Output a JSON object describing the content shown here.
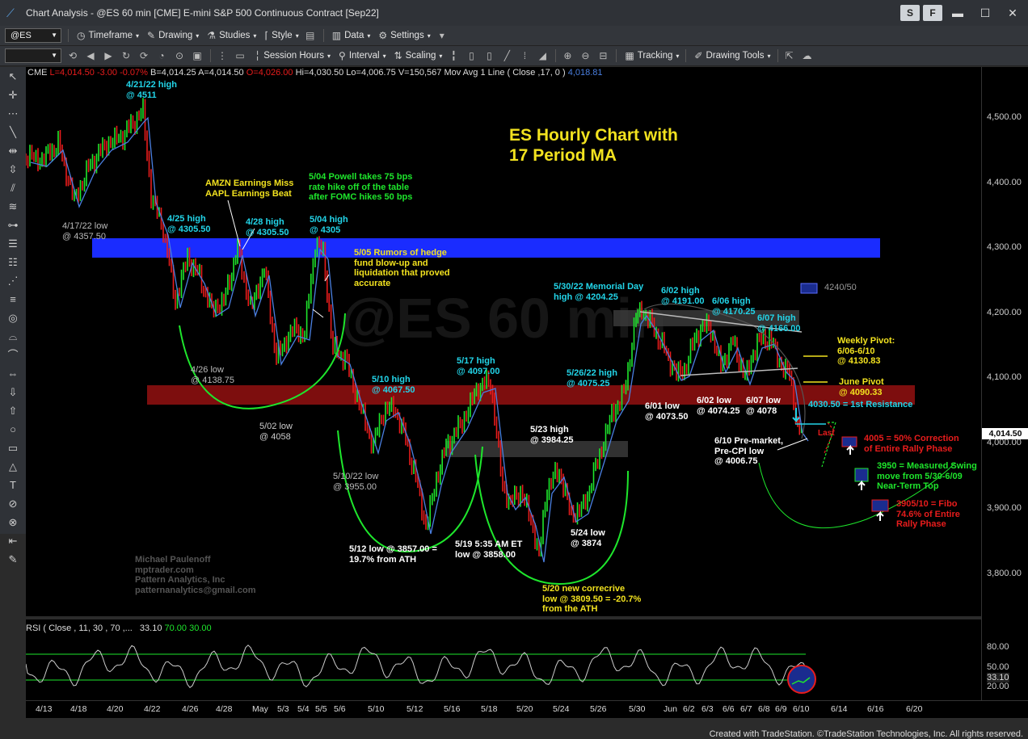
{
  "window": {
    "title": "Chart Analysis - @ES 60 min [CME] E-mini S&P 500 Continuous Contract [Sep22]",
    "buttons": [
      "S",
      "F"
    ]
  },
  "toolbar1": {
    "symbol": "@ES",
    "items": [
      "Timeframe",
      "Drawing",
      "Studies",
      "Style",
      "Data",
      "Settings"
    ]
  },
  "toolbar2": {
    "items": [
      "Session Hours",
      "Interval",
      "Scaling",
      "Tracking",
      "Drawing Tools"
    ]
  },
  "info_line": {
    "exchange": "CME",
    "last": "L=4,014.50",
    "change": "-3.00",
    "pct": "-0.07%",
    "bid": "B=4,014.25",
    "ask": "A=4,014.50",
    "open": "O=4,026.00",
    "high": "Hi=4,030.50",
    "low": "Lo=4,006.75",
    "volume": "V=150,567",
    "study": "Mov Avg 1 Line ( Close ,17, 0 )",
    "study_value": "4,018.81"
  },
  "rsi_line": {
    "label": "RSI ( Close , 11, 30 , 70 ,...",
    "v1": "33.10",
    "v2": "70.00",
    "v3": "30.00"
  },
  "chart_title": "ES Hourly Chart with\n17 Period MA",
  "annotations": {
    "a1": "4/21/22 high\n@ 4511",
    "a2": "4/17/22 low\n@ 4357.50",
    "a3": "AMZN Earnings Miss\nAAPL Earnings Beat",
    "a4": "5/04 Powell takes 75 bps\nrate hike off of the table\nafter FOMC hikes 50 bps",
    "a5": "4/25 high\n@ 4305.50",
    "a6": "4/28 high\n@ 4305.50",
    "a7": "5/04 high\n@ 4305",
    "a8": "5/05 Rumors of hedge\nfund blow-up and\nliquidation that proved\naccurate",
    "a9": "4/26 low\n@ 4138.75",
    "a10": "5/02 low\n@ 4058",
    "a11": "5/10 high\n@ 4067.50",
    "a12": "5/17 high\n@ 4097.00",
    "a13": "5/10/22 low\n@ 3955.00",
    "a14": "5/12 low @ 3857.00 =\n19.7% from ATH",
    "a15": "5/19 5:35 AM ET\nlow @ 3858.00",
    "a16": "5/20 new correcrive\nlow @ 3809.50 = -20.7%\nfrom the ATH",
    "a17": "5/23 high\n@ 3984.25",
    "a18": "5/24 low\n@ 3874",
    "a19": "5/26/22 high\n@ 4075.25",
    "a20": "5/30/22 Memorial Day\nhigh @ 4204.25",
    "a21": "6/02 high\n@ 4191.00",
    "a22": "6/06 high\n@ 4170.25",
    "a23": "6/07 high\n@ 4166.00",
    "a24": "6/01 low\n@ 4073.50",
    "a25": "6/02 low\n@ 4074.25",
    "a26": "6/07 low\n@ 4078",
    "a27": "Weekly Pivot:\n6/06-6/10\n@ 4130.83",
    "a28": "June Pivot\n@ 4090.33",
    "a29": "4030.50 = 1st Resistance",
    "a30": "6/10 Pre-market,\nPre-CPI low\n@ 4006.75",
    "a31": "Last",
    "a32": "4005 = 50% Correction\nof Entire Rally Phase",
    "a33": "3950 = Measured Swing\nmove from 5/30-6/09\nNear-Term Top",
    "a34": "3905/10 = Fibo\n74.6% of Entire\nRally Phase",
    "a35": "4240/50",
    "credits": "Michael Paulenoff\nmptrader.com\nPattern Analytics, Inc\npatternanalytics@gmail.com"
  },
  "price_axis": [
    "4,500.00",
    "4,400.00",
    "4,300.00",
    "4,200.00",
    "4,100.00",
    "4,000.00",
    "3,900.00",
    "3,800.00"
  ],
  "last_price_label": "4,014.50",
  "rsi_axis": [
    "80.00",
    "50.00",
    "33.10",
    "20.00"
  ],
  "date_axis": [
    "4/13",
    "4/18",
    "4/20",
    "4/22",
    "4/26",
    "4/28",
    "May",
    "5/3",
    "5/4",
    "5/5",
    "5/6",
    "5/10",
    "5/12",
    "5/16",
    "5/18",
    "5/20",
    "5/24",
    "5/26",
    "5/30",
    "Jun",
    "6/2",
    "6/3",
    "6/6",
    "6/7",
    "6/8",
    "6/9",
    "6/10",
    "6/14",
    "6/16",
    "6/20"
  ],
  "footer": "Created with TradeStation. ©TradeStation Technologies, Inc. All rights reserved.",
  "watermark": "@ES 60 min",
  "colors": {
    "up_bar": "#1ee62c",
    "down_bar": "#e81c1c",
    "ma_line": "#4a7fe0",
    "cyan_text": "#22d4e8",
    "yellow_text": "#f2e21f",
    "blue_zone": "#1a2cff",
    "red_zone": "#8b0f0f"
  }
}
